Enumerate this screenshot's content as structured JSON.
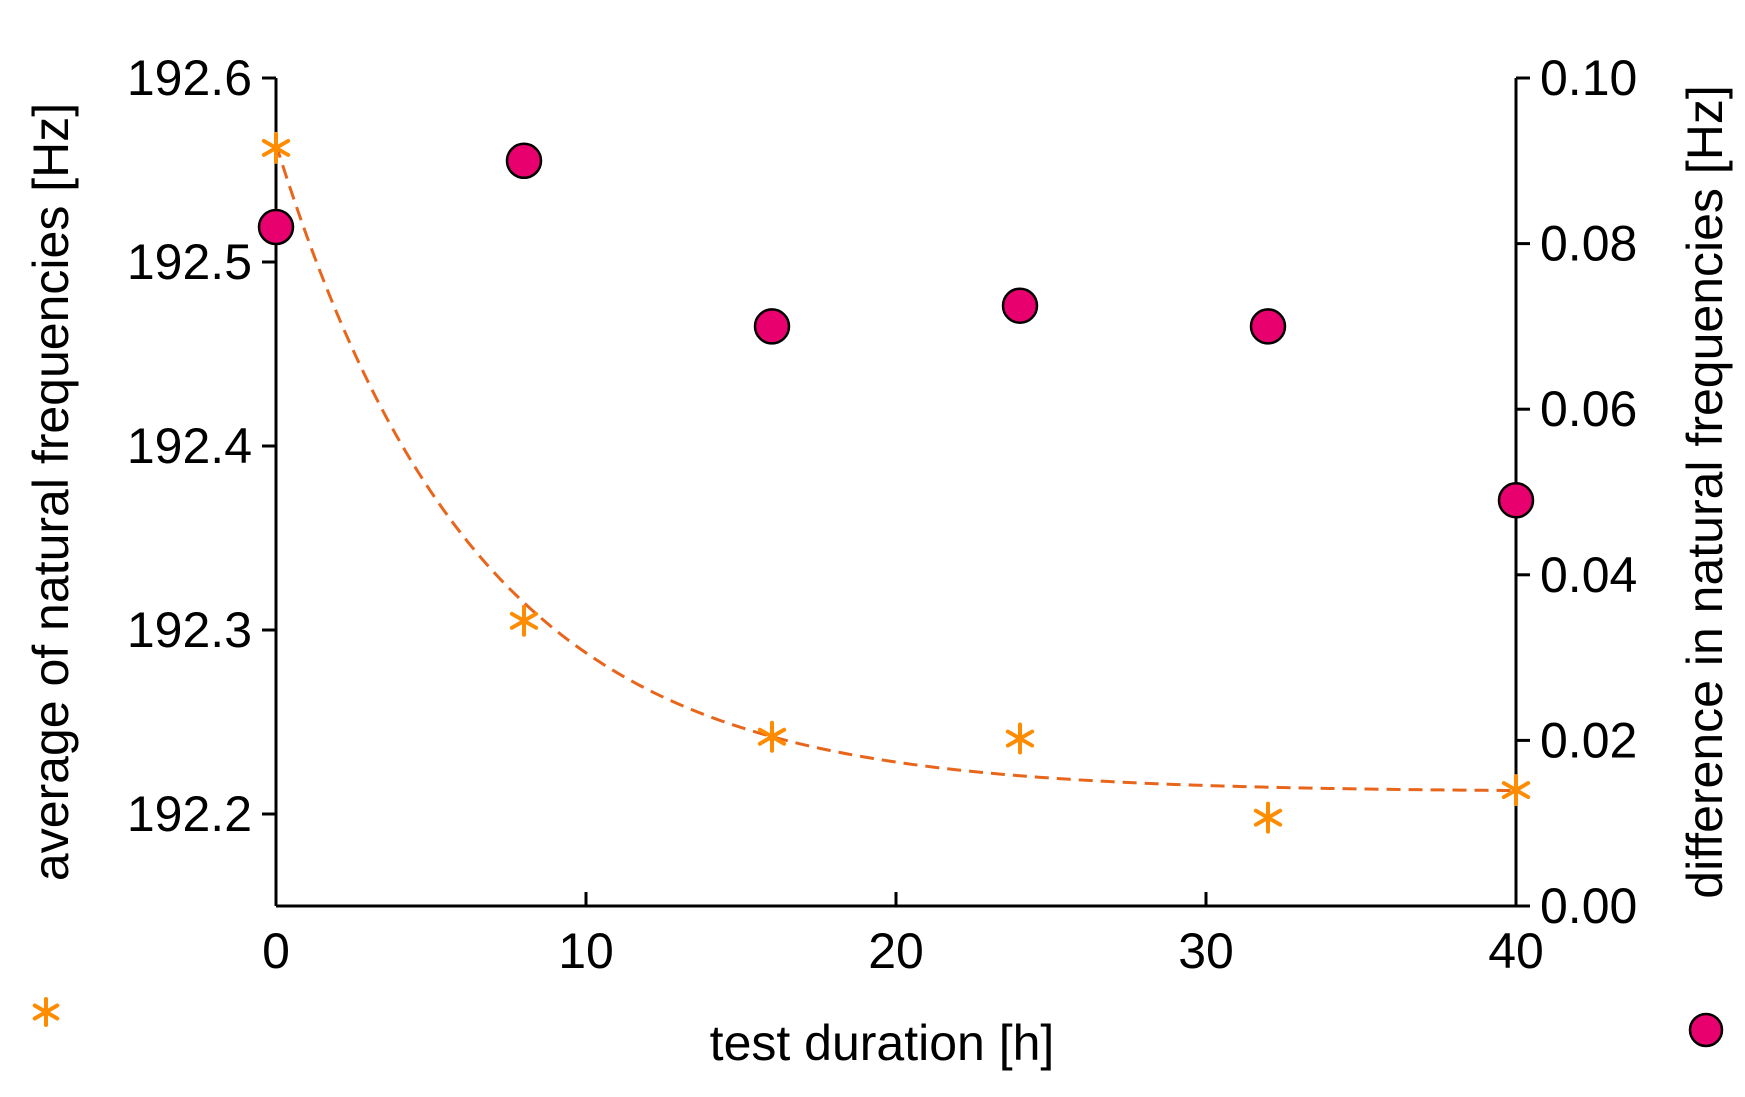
{
  "chart_data": {
    "type": "scatter",
    "title": "",
    "xlabel": "test duration [h]",
    "ylabel_left": "average of natural frequencies [Hz]",
    "ylabel_right": "difference in natural frequencies [Hz]",
    "xlim": [
      0,
      40
    ],
    "ylim_left": [
      192.15,
      192.6
    ],
    "ylim_right": [
      0.0,
      0.1
    ],
    "x_ticks": [
      0,
      10,
      20,
      30,
      40
    ],
    "x_tick_labels": [
      "0",
      "10",
      "20",
      "30",
      "40"
    ],
    "y_left_ticks": [
      192.2,
      192.3,
      192.4,
      192.5,
      192.6
    ],
    "y_left_tick_labels": [
      "192.2",
      "192.3",
      "192.4",
      "192.5",
      "192.6"
    ],
    "y_right_ticks": [
      0.0,
      0.02,
      0.04,
      0.06,
      0.08,
      0.1
    ],
    "y_right_tick_labels": [
      "0.00",
      "0.02",
      "0.04",
      "0.06",
      "0.08",
      "0.10"
    ],
    "grid": false,
    "series": [
      {
        "name": "average of natural frequencies",
        "axis": "left",
        "marker": "asterisk",
        "color": "#FF8C00",
        "x": [
          0,
          8,
          16,
          24,
          32,
          40
        ],
        "y": [
          192.562,
          192.305,
          192.242,
          192.241,
          192.198,
          192.213
        ]
      },
      {
        "name": "difference in natural frequencies",
        "axis": "right",
        "marker": "circle",
        "color": "#E8006E",
        "x": [
          0,
          8,
          16,
          24,
          32,
          40
        ],
        "y": [
          0.082,
          0.09,
          0.07,
          0.0725,
          0.07,
          0.049
        ]
      },
      {
        "name": "exponential fit",
        "axis": "left",
        "style": "dashed",
        "color": "#E8661C",
        "fit": {
          "form": "a + b*exp(-x/tau)",
          "a": 192.212,
          "b": 0.352,
          "tau": 6.5
        }
      }
    ]
  }
}
